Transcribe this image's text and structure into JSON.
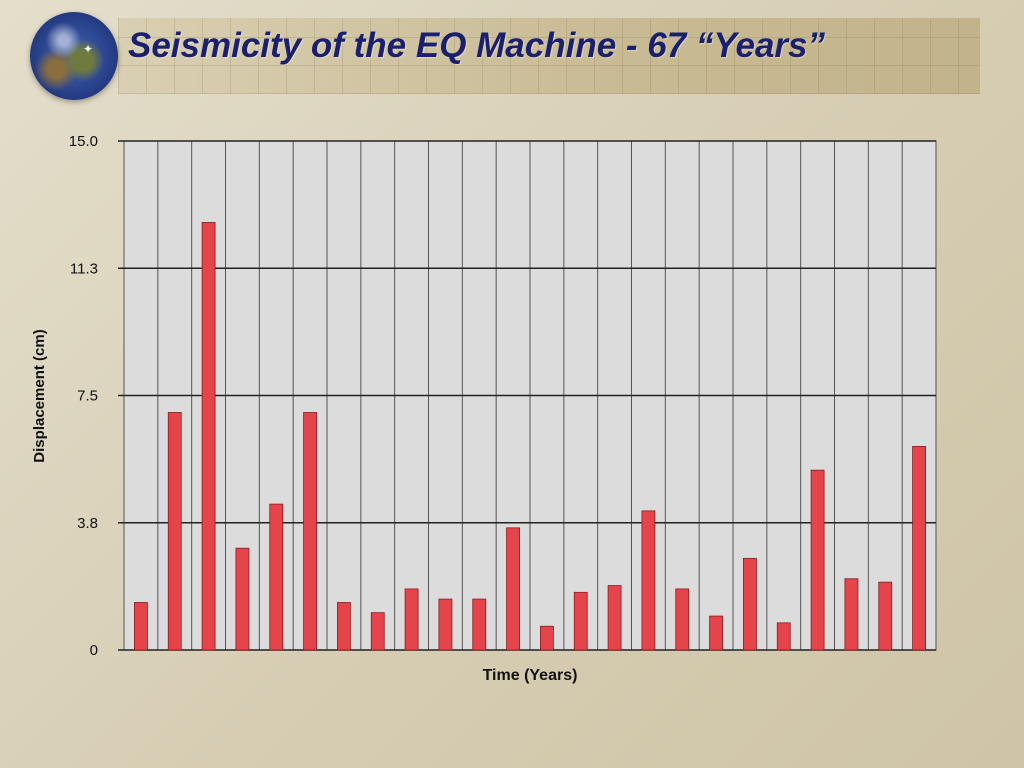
{
  "slide": {
    "title": "Seismicity of the EQ Machine - 67 “Years”"
  },
  "colors": {
    "bar": "#e5454a",
    "plot_bg": "#dcdcdc",
    "title": "#1a1f6e"
  },
  "chart_data": {
    "type": "bar",
    "title": "",
    "xlabel": "Time (Years)",
    "ylabel": "Displacement (cm)",
    "ylim": [
      0,
      15.0
    ],
    "yticks": [
      {
        "value": 0,
        "label": "0"
      },
      {
        "value": 3.75,
        "label": "3.8"
      },
      {
        "value": 7.5,
        "label": "7.5"
      },
      {
        "value": 11.25,
        "label": "11.3"
      },
      {
        "value": 15.0,
        "label": "15.0"
      }
    ],
    "grid": true,
    "values": [
      1.4,
      7.0,
      12.6,
      3.0,
      4.3,
      7.0,
      1.4,
      1.1,
      1.8,
      1.5,
      1.5,
      3.6,
      0.7,
      1.7,
      1.9,
      4.1,
      1.8,
      1.0,
      2.7,
      0.8,
      5.3,
      2.1,
      2.0,
      6.0
    ]
  }
}
